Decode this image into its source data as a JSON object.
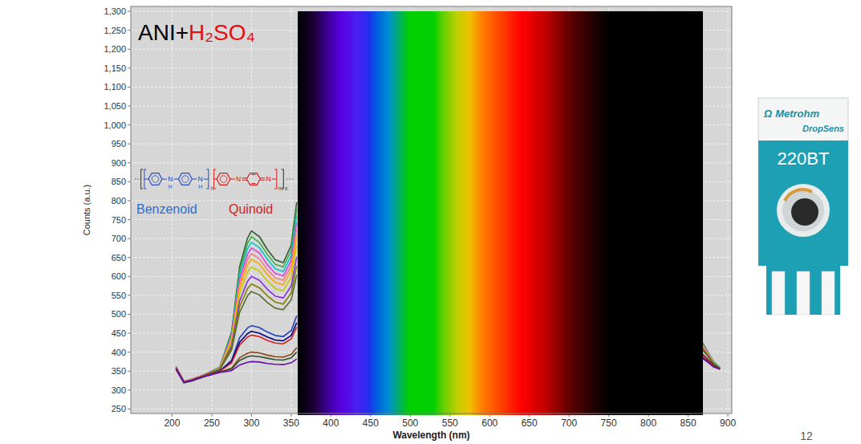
{
  "chart_data": {
    "type": "line",
    "title": [
      "ANI+",
      "H₂SO₄"
    ],
    "x_label": "Wavelength (nm)",
    "y_label": "Counts (a.u.)",
    "xlim": [
      148,
      905
    ],
    "ylim": [
      238,
      1313
    ],
    "xticks": [
      200,
      250,
      300,
      350,
      400,
      450,
      500,
      550,
      600,
      650,
      700,
      750,
      800,
      850,
      900
    ],
    "yticks": [
      250,
      300,
      350,
      400,
      450,
      500,
      550,
      600,
      650,
      700,
      750,
      800,
      850,
      900,
      950,
      {
        "value": 1000,
        "label": "1,000"
      },
      {
        "value": 1050,
        "label": "1,050"
      },
      {
        "value": 1100,
        "label": "1,100"
      },
      {
        "value": 1150,
        "label": "1,150"
      },
      {
        "value": 1200,
        "label": "1,200"
      },
      {
        "value": 1250,
        "label": "1,250"
      },
      {
        "value": 1300,
        "label": "1,300"
      }
    ],
    "grid": true,
    "x": [
      205,
      215,
      225,
      240,
      260,
      275,
      285,
      295,
      300,
      310,
      320,
      330,
      340,
      350,
      357,
      600,
      867,
      875,
      882,
      890
    ],
    "series": [
      {
        "color": "#2f5d2f",
        "values": [
          362,
          322,
          328,
          340,
          360,
          454,
          625,
          701,
          720,
          705,
          671,
          644,
          636,
          682,
          796,
          null,
          429,
          400,
          375,
          359
        ]
      },
      {
        "color": "#3cb043",
        "values": [
          360,
          321,
          328,
          340,
          360,
          450,
          614,
          687,
          705,
          690,
          658,
          632,
          625,
          669,
          778,
          null,
          427,
          399,
          375,
          359
        ]
      },
      {
        "color": "#00c8c8",
        "values": [
          358,
          320,
          327,
          339,
          359,
          445,
          603,
          673,
          690,
          676,
          645,
          620,
          613,
          655,
          760,
          null,
          426,
          398,
          374,
          359
        ]
      },
      {
        "color": "#e040e0",
        "values": [
          361,
          323,
          329,
          340,
          358,
          441,
          591,
          658,
          675,
          662,
          631,
          608,
          601,
          642,
          742,
          null,
          424,
          397,
          373,
          358
        ]
      },
      {
        "color": "#f08080",
        "values": [
          359,
          322,
          328,
          339,
          358,
          436,
          580,
          644,
          660,
          647,
          618,
          596,
          590,
          628,
          724,
          null,
          422,
          396,
          373,
          358
        ]
      },
      {
        "color": "#ffa500",
        "values": [
          357,
          320,
          327,
          338,
          357,
          432,
          569,
          630,
          645,
          633,
          605,
          584,
          578,
          615,
          706,
          null,
          420,
          394,
          372,
          358
        ]
      },
      {
        "color": "#c8c800",
        "values": [
          360,
          321,
          328,
          339,
          356,
          426,
          554,
          611,
          625,
          614,
          588,
          568,
          562,
          597,
          682,
          null,
          417,
          393,
          371,
          358
        ]
      },
      {
        "color": "#8a2be2",
        "values": [
          358,
          322,
          327,
          338,
          355,
          418,
          535,
          587,
          600,
          590,
          566,
          548,
          543,
          574,
          652,
          null,
          414,
          391,
          370,
          358
        ]
      },
      {
        "color": "#808000",
        "values": [
          356,
          320,
          326,
          337,
          355,
          412,
          520,
          568,
          580,
          570,
          549,
          532,
          527,
          556,
          628,
          null,
          411,
          389,
          370,
          357
        ]
      },
      {
        "color": "#556b2f",
        "values": [
          359,
          321,
          327,
          338,
          354,
          406,
          505,
          549,
          560,
          551,
          531,
          516,
          512,
          538,
          604,
          null,
          409,
          388,
          369,
          357
        ]
      },
      {
        "color": "#1f3fbf",
        "values": [
          357,
          320,
          326,
          337,
          350,
          379,
          438,
          464,
          470,
          465,
          453,
          444,
          441,
          457,
          496,
          null,
          397,
          380,
          365,
          356
        ]
      },
      {
        "color": "#000080",
        "values": [
          355,
          319,
          325,
          336,
          350,
          375,
          426,
          449,
          455,
          450,
          440,
          432,
          430,
          444,
          478,
          null,
          395,
          379,
          365,
          356
        ]
      },
      {
        "color": "#d62020",
        "values": [
          358,
          321,
          326,
          337,
          349,
          372,
          419,
          440,
          445,
          441,
          431,
          424,
          422,
          435,
          466,
          null,
          394,
          378,
          364,
          356
        ]
      },
      {
        "color": "#8b4513",
        "values": [
          356,
          320,
          325,
          336,
          347,
          358,
          385,
          397,
          400,
          398,
          392,
          388,
          387,
          394,
          412,
          null,
          388,
          375,
          362,
          356
        ]
      },
      {
        "color": "#2f4f2f",
        "values": [
          354,
          319,
          324,
          335,
          347,
          355,
          378,
          388,
          390,
          388,
          384,
          380,
          379,
          385,
          400,
          null,
          387,
          374,
          362,
          355
        ]
      },
      {
        "color": "#6a0dad",
        "values": [
          355,
          320,
          325,
          335,
          346,
          351,
          366,
          373,
          375,
          374,
          370,
          368,
          367,
          372,
          382,
          null,
          385,
          373,
          361,
          355
        ]
      }
    ],
    "annotations": {
      "benzenoid": "Benzenoid",
      "quinoid": "Quinoid",
      "nitrogen": "N",
      "hydrogen": "H",
      "index_n": "n",
      "index_m": "m",
      "index_x": "x",
      "logo": "Ω",
      "brand": "Metrohm",
      "brand_line2": "DropSens",
      "model": "220BT",
      "page": "12"
    }
  }
}
